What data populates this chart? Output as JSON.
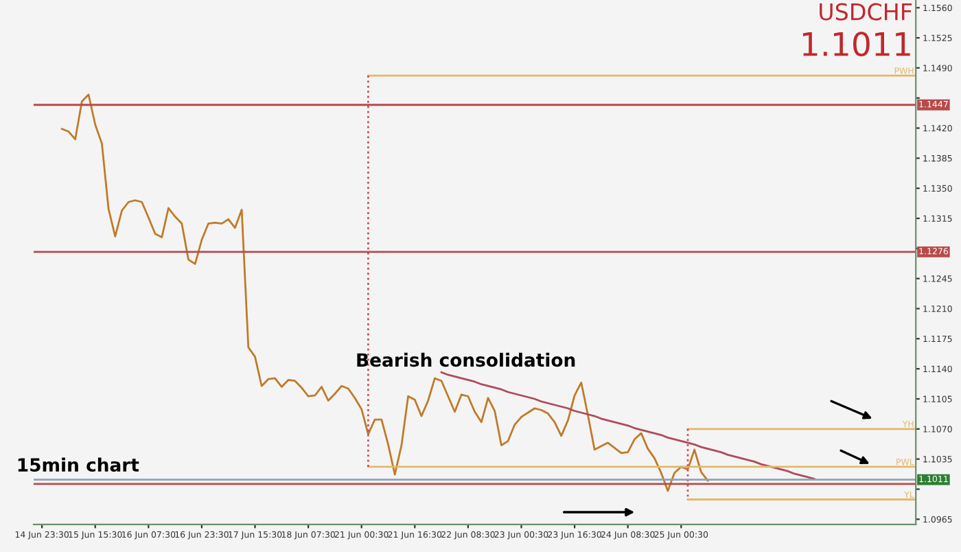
{
  "chart_data": {
    "type": "line",
    "title": "USDCHF",
    "subtitle": "1.1011",
    "annotations": [
      "Bearish consolidation",
      "15min chart"
    ],
    "categories": [
      "14 Jun 23:30",
      null,
      null,
      null,
      null,
      null,
      null,
      null,
      "15 Jun 15:30",
      null,
      null,
      null,
      null,
      null,
      null,
      null,
      "16 Jun 07:30",
      null,
      null,
      null,
      null,
      null,
      null,
      null,
      "16 Jun 23:30",
      null,
      null,
      null,
      null,
      null,
      null,
      null,
      "17 Jun 15:30",
      null,
      null,
      null,
      null,
      null,
      null,
      null,
      "18 Jun 07:30",
      null,
      null,
      null,
      null,
      null,
      null,
      null,
      "21 Jun 00:30",
      null,
      null,
      null,
      null,
      null,
      null,
      null,
      "21 Jun 16:30",
      null,
      null,
      null,
      null,
      null,
      null,
      null,
      "22 Jun 08:30",
      null,
      null,
      null,
      null,
      null,
      null,
      null,
      "23 Jun 00:30",
      null,
      null,
      null,
      null,
      null,
      null,
      null,
      "23 Jun 16:30",
      null,
      null,
      null,
      null,
      null,
      null,
      null,
      "24 Jun 08:30",
      null,
      null,
      null,
      null,
      null,
      null,
      null,
      "25 Jun 00:30",
      null,
      null,
      null,
      null,
      null,
      null,
      null,
      null,
      null,
      null,
      null,
      null,
      null,
      null,
      null,
      null,
      null,
      null,
      null,
      null,
      null,
      null,
      null,
      null,
      null,
      null,
      null,
      null,
      null,
      null,
      null,
      null,
      null,
      null,
      null
    ],
    "ylim": [
      1.0959,
      1.1569
    ],
    "yticks": [
      {
        "value": 1.0965,
        "label": "1.0965"
      },
      {
        "value": 1.1,
        "label": null
      },
      {
        "value": 1.1035,
        "label": "1.1035"
      },
      {
        "value": 1.107,
        "label": "1.1070"
      },
      {
        "value": 1.1105,
        "label": "1.1105"
      },
      {
        "value": 1.114,
        "label": "1.1140"
      },
      {
        "value": 1.1175,
        "label": "1.1175"
      },
      {
        "value": 1.121,
        "label": "1.1210"
      },
      {
        "value": 1.1245,
        "label": "1.1245"
      },
      {
        "value": 1.128,
        "label": null
      },
      {
        "value": 1.1315,
        "label": "1.1315"
      },
      {
        "value": 1.135,
        "label": "1.1350"
      },
      {
        "value": 1.1385,
        "label": "1.1385"
      },
      {
        "value": 1.142,
        "label": "1.1420"
      },
      {
        "value": 1.1455,
        "label": null
      },
      {
        "value": 1.149,
        "label": "1.1490"
      },
      {
        "value": 1.1525,
        "label": "1.1525"
      },
      {
        "value": 1.156,
        "label": "1.1560"
      }
    ],
    "grid": false,
    "legend": false,
    "ref_lines": [
      {
        "axis": "y",
        "value": 1.1447,
        "label": "1.1447",
        "color": "#b84a4a"
      },
      {
        "axis": "y",
        "value": 1.1276,
        "label": "1.1276",
        "color": "#b84a4a"
      },
      {
        "axis": "y",
        "value": 1.1011,
        "label": "1.1011",
        "color": "#8fa3b8"
      },
      {
        "axis": "y",
        "value": 1.1006,
        "label": null,
        "color": "#b84a4a"
      }
    ],
    "series": [
      {
        "color": "#c07a28",
        "values": [
          null,
          null,
          null,
          1.1419,
          1.1416,
          1.1407,
          1.1451,
          1.1459,
          1.1424,
          1.1402,
          1.1326,
          1.1294,
          1.1324,
          1.1334,
          1.1336,
          1.1334,
          1.1316,
          1.1297,
          1.1293,
          1.1327,
          1.1317,
          1.1309,
          1.1267,
          1.1262,
          1.129,
          1.1309,
          1.131,
          1.1309,
          1.1314,
          1.1304,
          1.1325,
          1.1165,
          1.1154,
          1.112,
          1.1128,
          1.1129,
          1.1119,
          1.1127,
          1.1126,
          1.1118,
          1.1108,
          1.1109,
          1.1119,
          1.1103,
          1.1111,
          1.112,
          1.1117,
          1.1106,
          1.1093,
          1.1064,
          1.1081,
          1.1081,
          1.1052,
          1.1017,
          1.1051,
          1.1108,
          1.1104,
          1.1085,
          1.1103,
          1.1129,
          1.1126,
          1.1108,
          1.109,
          1.111,
          1.1108,
          1.109,
          1.1078,
          1.1106,
          1.1091,
          1.1051,
          1.1056,
          1.1075,
          1.1084,
          1.1089,
          1.1094,
          1.1092,
          1.1088,
          1.1078,
          1.1062,
          1.108,
          1.1109,
          1.1124,
          1.1086,
          1.1046,
          1.105,
          1.1054,
          1.1048,
          1.1042,
          1.1043,
          1.1058,
          1.1065,
          1.1047,
          1.1036,
          1.1019,
          1.0998,
          1.1019,
          1.1026,
          1.1023,
          1.1046,
          1.102,
          1.101,
          null,
          null,
          null,
          null,
          null,
          null,
          null,
          null,
          null,
          null,
          null,
          null,
          null,
          null,
          null,
          null,
          null,
          null,
          null,
          null,
          null,
          null,
          null,
          null,
          null,
          null,
          null,
          null,
          null,
          null,
          null
        ]
      },
      {
        "color": "#b04a5a",
        "values": [
          null,
          null,
          null,
          null,
          null,
          null,
          null,
          null,
          null,
          null,
          null,
          null,
          null,
          null,
          null,
          null,
          null,
          null,
          null,
          null,
          null,
          null,
          null,
          null,
          null,
          null,
          null,
          null,
          null,
          null,
          null,
          null,
          null,
          null,
          null,
          null,
          null,
          null,
          null,
          null,
          null,
          null,
          null,
          null,
          null,
          null,
          null,
          null,
          null,
          null,
          null,
          null,
          null,
          null,
          null,
          null,
          null,
          null,
          null,
          null,
          1.1136,
          1.1133,
          1.1131,
          1.1129,
          1.1127,
          1.1125,
          1.1122,
          1.112,
          1.1118,
          1.1116,
          1.1113,
          1.1111,
          1.1109,
          1.1107,
          1.1105,
          1.1102,
          1.11,
          1.1098,
          1.1096,
          1.1094,
          1.1091,
          1.1089,
          1.1087,
          1.1085,
          1.1082,
          1.108,
          1.1078,
          1.1076,
          1.1074,
          1.1071,
          1.1069,
          1.1067,
          1.1065,
          1.1063,
          1.106,
          1.1058,
          1.1056,
          1.1054,
          1.1052,
          1.1049,
          1.1047,
          1.1045,
          1.1043,
          1.104,
          1.1038,
          1.1036,
          1.1034,
          1.1032,
          1.1029,
          1.1027,
          1.1025,
          1.1023,
          1.1021,
          1.1018,
          1.1016,
          1.1014,
          1.1012,
          null,
          null,
          null,
          null,
          null,
          null,
          null,
          null,
          null,
          null,
          null,
          null,
          null,
          null,
          null
        ]
      },
      {
        "name": "PWH",
        "color": "#e2b86a",
        "values": [
          null,
          null,
          null,
          null,
          null,
          null,
          null,
          null,
          null,
          null,
          null,
          null,
          null,
          null,
          null,
          null,
          null,
          null,
          null,
          null,
          null,
          null,
          null,
          null,
          null,
          null,
          null,
          null,
          null,
          null,
          null,
          null,
          null,
          null,
          null,
          null,
          null,
          null,
          null,
          null,
          null,
          null,
          null,
          null,
          null,
          null,
          null,
          null,
          null,
          1.1481,
          1.1481,
          1.1481,
          1.1481,
          1.1481,
          1.1481,
          1.1481,
          1.1481,
          1.1481,
          1.1481,
          1.1481,
          1.1481,
          1.1481,
          1.1481,
          1.1481,
          1.1481,
          1.1481,
          1.1481,
          1.1481,
          1.1481,
          1.1481,
          1.1481,
          1.1481,
          1.1481,
          1.1481,
          1.1481,
          1.1481,
          1.1481,
          1.1481,
          1.1481,
          1.1481,
          1.1481,
          1.1481,
          1.1481,
          1.1481,
          1.1481,
          1.1481,
          1.1481,
          1.1481,
          1.1481,
          1.1481,
          1.1481,
          1.1481,
          1.1481,
          1.1481,
          1.1481,
          1.1481,
          1.1481,
          1.1481,
          1.1481,
          1.1481,
          1.1481,
          1.1481,
          1.1481,
          1.1481,
          1.1481,
          1.1481,
          1.1481,
          1.1481,
          1.1481,
          1.1481,
          1.1481,
          1.1481,
          1.1481,
          1.1481,
          1.1481,
          1.1481,
          1.1481,
          1.1481,
          1.1481,
          1.1481,
          1.1481,
          1.1481,
          1.1481,
          1.1481,
          1.1481,
          1.1481,
          1.1481,
          1.1481,
          1.1481,
          1.1481,
          1.1481,
          1.1481
        ]
      },
      {
        "name": "PWL",
        "color": "#e2b86a",
        "values": [
          null,
          null,
          null,
          null,
          null,
          null,
          null,
          null,
          null,
          null,
          null,
          null,
          null,
          null,
          null,
          null,
          null,
          null,
          null,
          null,
          null,
          null,
          null,
          null,
          null,
          null,
          null,
          null,
          null,
          null,
          null,
          null,
          null,
          null,
          null,
          null,
          null,
          null,
          null,
          null,
          null,
          null,
          null,
          null,
          null,
          null,
          null,
          null,
          null,
          1.1026,
          1.1026,
          1.1026,
          1.1026,
          1.1026,
          1.1026,
          1.1026,
          1.1026,
          1.1026,
          1.1026,
          1.1026,
          1.1026,
          1.1026,
          1.1026,
          1.1026,
          1.1026,
          1.1026,
          1.1026,
          1.1026,
          1.1026,
          1.1026,
          1.1026,
          1.1026,
          1.1026,
          1.1026,
          1.1026,
          1.1026,
          1.1026,
          1.1026,
          1.1026,
          1.1026,
          1.1026,
          1.1026,
          1.1026,
          1.1026,
          1.1026,
          1.1026,
          1.1026,
          1.1026,
          1.1026,
          1.1026,
          1.1026,
          1.1026,
          1.1026,
          1.1026,
          1.1026,
          1.1026,
          1.1026,
          1.1026,
          1.1026,
          1.1026,
          1.1026,
          1.1026,
          1.1026,
          1.1026,
          1.1026,
          1.1026,
          1.1026,
          1.1026,
          1.1026,
          1.1026,
          1.1026,
          1.1026,
          1.1026,
          1.1026,
          1.1026,
          1.1026,
          1.1026,
          1.1026,
          1.1026,
          1.1026,
          1.1026,
          1.1026,
          1.1026,
          1.1026,
          1.1026,
          1.1026,
          1.1026,
          1.1026,
          1.1026,
          1.1026,
          1.1026,
          1.1026
        ]
      },
      {
        "name": "YH",
        "color": "#e2b86a",
        "values": [
          null,
          null,
          null,
          null,
          null,
          null,
          null,
          null,
          null,
          null,
          null,
          null,
          null,
          null,
          null,
          null,
          null,
          null,
          null,
          null,
          null,
          null,
          null,
          null,
          null,
          null,
          null,
          null,
          null,
          null,
          null,
          null,
          null,
          null,
          null,
          null,
          null,
          null,
          null,
          null,
          null,
          null,
          null,
          null,
          null,
          null,
          null,
          null,
          null,
          null,
          null,
          null,
          null,
          null,
          null,
          null,
          null,
          null,
          null,
          null,
          null,
          null,
          null,
          null,
          null,
          null,
          null,
          null,
          null,
          null,
          null,
          null,
          null,
          null,
          null,
          null,
          null,
          null,
          null,
          null,
          null,
          null,
          null,
          null,
          null,
          null,
          null,
          null,
          null,
          null,
          null,
          null,
          null,
          null,
          null,
          null,
          null,
          1.107,
          1.107,
          1.107,
          1.107,
          1.107,
          1.107,
          1.107,
          1.107,
          1.107,
          1.107,
          1.107,
          1.107,
          1.107,
          1.107,
          1.107,
          1.107,
          1.107,
          1.107,
          1.107,
          1.107,
          1.107,
          1.107,
          1.107,
          1.107,
          1.107,
          1.107,
          1.107,
          1.107,
          1.107,
          1.107,
          1.107,
          1.107,
          1.107,
          1.107,
          1.107
        ]
      },
      {
        "name": "YL",
        "color": "#e2b86a",
        "values": [
          null,
          null,
          null,
          null,
          null,
          null,
          null,
          null,
          null,
          null,
          null,
          null,
          null,
          null,
          null,
          null,
          null,
          null,
          null,
          null,
          null,
          null,
          null,
          null,
          null,
          null,
          null,
          null,
          null,
          null,
          null,
          null,
          null,
          null,
          null,
          null,
          null,
          null,
          null,
          null,
          null,
          null,
          null,
          null,
          null,
          null,
          null,
          null,
          null,
          null,
          null,
          null,
          null,
          null,
          null,
          null,
          null,
          null,
          null,
          null,
          null,
          null,
          null,
          null,
          null,
          null,
          null,
          null,
          null,
          null,
          null,
          null,
          null,
          null,
          null,
          null,
          null,
          null,
          null,
          null,
          null,
          null,
          null,
          null,
          null,
          null,
          null,
          null,
          null,
          null,
          null,
          null,
          null,
          null,
          null,
          null,
          null,
          1.0988,
          1.0988,
          1.0988,
          1.0988,
          1.0988,
          1.0988,
          1.0988,
          1.0988,
          1.0988,
          1.0988,
          1.0988,
          1.0988,
          1.0988,
          1.0988,
          1.0988,
          1.0988,
          1.0988,
          1.0988,
          1.0988,
          1.0988,
          1.0988,
          1.0988,
          1.0988,
          1.0988,
          1.0988,
          1.0988,
          1.0988,
          1.0988,
          1.0988,
          1.0988,
          1.0988,
          1.0988,
          1.0988,
          1.0988,
          1.0988
        ]
      }
    ]
  }
}
